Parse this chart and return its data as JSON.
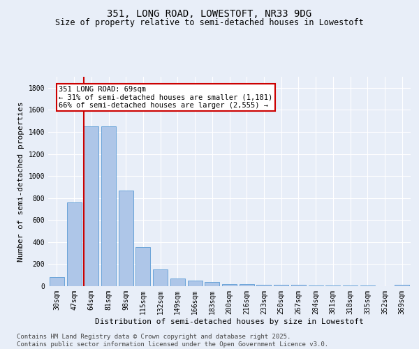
{
  "title_line1": "351, LONG ROAD, LOWESTOFT, NR33 9DG",
  "title_line2": "Size of property relative to semi-detached houses in Lowestoft",
  "xlabel": "Distribution of semi-detached houses by size in Lowestoft",
  "ylabel": "Number of semi-detached properties",
  "categories": [
    "30sqm",
    "47sqm",
    "64sqm",
    "81sqm",
    "98sqm",
    "115sqm",
    "132sqm",
    "149sqm",
    "166sqm",
    "183sqm",
    "200sqm",
    "216sqm",
    "233sqm",
    "250sqm",
    "267sqm",
    "284sqm",
    "301sqm",
    "318sqm",
    "335sqm",
    "352sqm",
    "369sqm"
  ],
  "values": [
    85,
    760,
    1450,
    1450,
    870,
    355,
    150,
    70,
    50,
    35,
    22,
    18,
    15,
    10,
    10,
    8,
    6,
    5,
    4,
    3,
    15
  ],
  "bar_color": "#aec6e8",
  "bar_edge_color": "#5b9bd5",
  "ref_line_color": "#cc0000",
  "ref_line_label": "351 LONG ROAD: 69sqm",
  "annotation_line1": "← 31% of semi-detached houses are smaller (1,181)",
  "annotation_line2": "66% of semi-detached houses are larger (2,555) →",
  "annotation_box_color": "#ffffff",
  "annotation_box_edge": "#cc0000",
  "ylim": [
    0,
    1900
  ],
  "yticks": [
    0,
    200,
    400,
    600,
    800,
    1000,
    1200,
    1400,
    1600,
    1800
  ],
  "background_color": "#e8eef8",
  "grid_color": "#ffffff",
  "footer_line1": "Contains HM Land Registry data © Crown copyright and database right 2025.",
  "footer_line2": "Contains public sector information licensed under the Open Government Licence v3.0.",
  "title_fontsize": 10,
  "subtitle_fontsize": 8.5,
  "axis_label_fontsize": 8,
  "tick_fontsize": 7,
  "annotation_fontsize": 7.5,
  "footer_fontsize": 6.5
}
